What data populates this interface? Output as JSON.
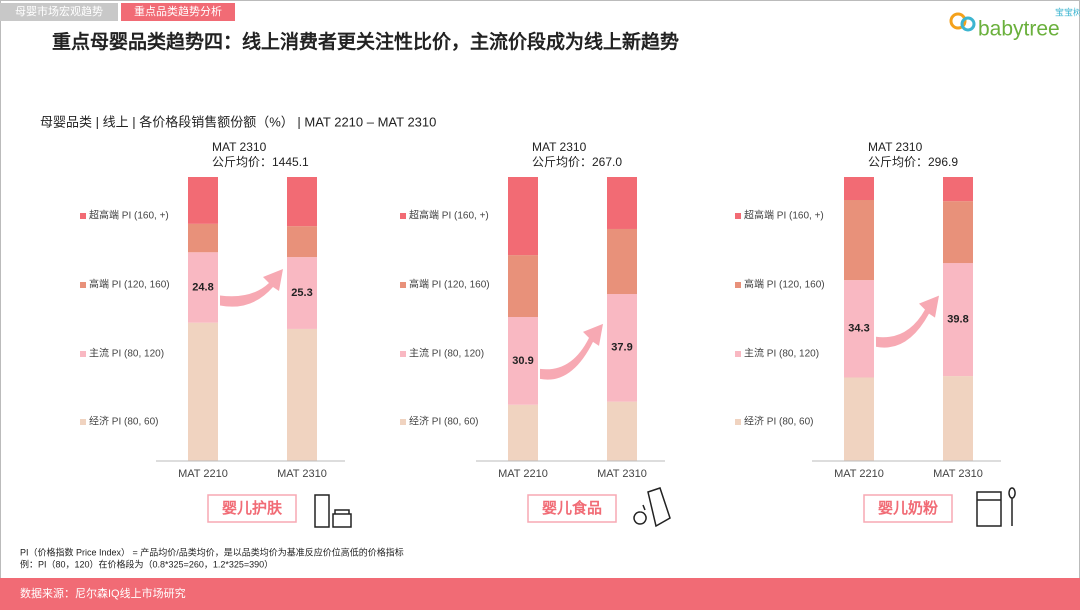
{
  "header": {
    "tabs": [
      "母婴市场宏观趋势",
      "重点品类趋势分析"
    ],
    "title": "重点母婴品类趋势四：线上消费者更关注性比价，主流价段成为线上新趋势",
    "logo": "babytree",
    "logo_badge": "宝宝树"
  },
  "subtitle": "母婴品类 | 线上 | 各价格段销售额份额（%） | MAT 2210 – MAT 2310",
  "chart_data": [
    {
      "type": "stacked_bar",
      "title": "MAT 2310",
      "subtitle": "公斤均价：1445.1",
      "annotation": "婴儿护肤",
      "categories": [
        "MAT 2210",
        "MAT 2310"
      ],
      "ylim": [
        0,
        100
      ],
      "series": [
        {
          "name": "超高端 PI (160, +)",
          "color": "#f26b74",
          "values": [
            16.5,
            17.3
          ]
        },
        {
          "name": "高端 PI (120, 160)",
          "color": "#e8917a",
          "values": [
            10.0,
            10.9
          ]
        },
        {
          "name": "主流 PI (80, 120)",
          "color": "#f9b8c2",
          "values": [
            24.8,
            25.3
          ],
          "show_labels": true
        },
        {
          "name": "经济 PI (80, 60)",
          "color": "#f0d3c0",
          "values": [
            48.7,
            46.5
          ]
        }
      ]
    },
    {
      "type": "stacked_bar",
      "title": "MAT 2310",
      "subtitle": "公斤均价：267.0",
      "annotation": "婴儿食品",
      "categories": [
        "MAT 2210",
        "MAT 2310"
      ],
      "ylim": [
        0,
        100
      ],
      "series": [
        {
          "name": "超高端 PI (160, +)",
          "color": "#f26b74",
          "values": [
            27.5,
            18.3
          ]
        },
        {
          "name": "高端 PI (120, 160)",
          "color": "#e8917a",
          "values": [
            21.8,
            22.9
          ]
        },
        {
          "name": "主流 PI (80, 120)",
          "color": "#f9b8c2",
          "values": [
            30.9,
            37.9
          ],
          "show_labels": true
        },
        {
          "name": "经济 PI (80, 60)",
          "color": "#f0d3c0",
          "values": [
            19.8,
            20.9
          ]
        }
      ]
    },
    {
      "type": "stacked_bar",
      "title": "MAT 2310",
      "subtitle": "公斤均价：296.9",
      "annotation": "婴儿奶粉",
      "categories": [
        "MAT 2210",
        "MAT 2310"
      ],
      "ylim": [
        0,
        100
      ],
      "series": [
        {
          "name": "超高端 PI (160, +)",
          "color": "#f26b74",
          "values": [
            8.1,
            8.5
          ]
        },
        {
          "name": "高端 PI (120, 160)",
          "color": "#e8917a",
          "values": [
            28.2,
            21.8
          ]
        },
        {
          "name": "主流 PI (80, 120)",
          "color": "#f9b8c2",
          "values": [
            34.3,
            39.8
          ],
          "show_labels": true
        },
        {
          "name": "经济 PI (80, 60)",
          "color": "#f0d3c0",
          "values": [
            29.4,
            29.9
          ]
        }
      ]
    }
  ],
  "footnotes": [
    "PI（价格指数 Price Index） = 产品均价/品类均价，是以品类均价为基准反应价位高低的价格指标",
    "例：PI（80，120）在价格段为（0.8*325=260，1.2*325=390）"
  ],
  "source": "数据来源：尼尔森IQ线上市场研究"
}
